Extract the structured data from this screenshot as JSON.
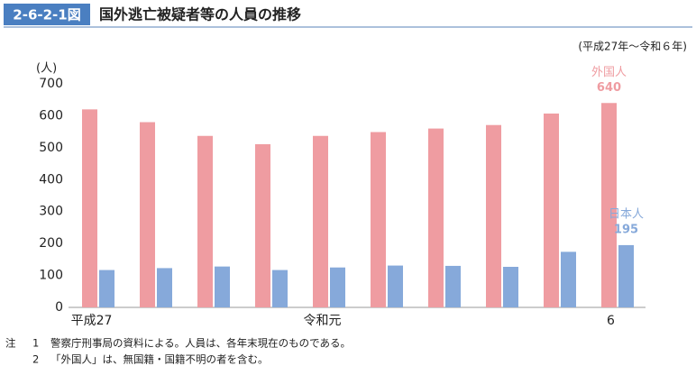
{
  "chart_data": {
    "type": "bar",
    "figure_label": "2-6-2-1図",
    "title": "国外逃亡被疑者等の人員の推移",
    "subtitle": "(平成27年～令和６年)",
    "y_label": "(人)",
    "categories": [
      "平成27",
      null,
      null,
      null,
      "令和元",
      null,
      null,
      null,
      null,
      "6"
    ],
    "series": [
      {
        "name": "外国人",
        "color": "#ef9ca1",
        "values": [
          620,
          580,
          537,
          511,
          537,
          549,
          560,
          571,
          607,
          640
        ]
      },
      {
        "name": "日本人",
        "color": "#86a9da",
        "values": [
          117,
          123,
          128,
          117,
          125,
          131,
          130,
          127,
          174,
          195
        ]
      }
    ],
    "ylim": [
      0,
      700
    ],
    "yticks": [
      0,
      100,
      200,
      300,
      400,
      500,
      600,
      700
    ],
    "grid": false,
    "note_label": "注",
    "notes": [
      {
        "number": 1,
        "text": "警察庁刑事局の資料による。人員は、各年末現在のものである。"
      },
      {
        "number": 2,
        "text": "「外国人」は、無国籍・国籍不明の者を含む。"
      }
    ]
  }
}
